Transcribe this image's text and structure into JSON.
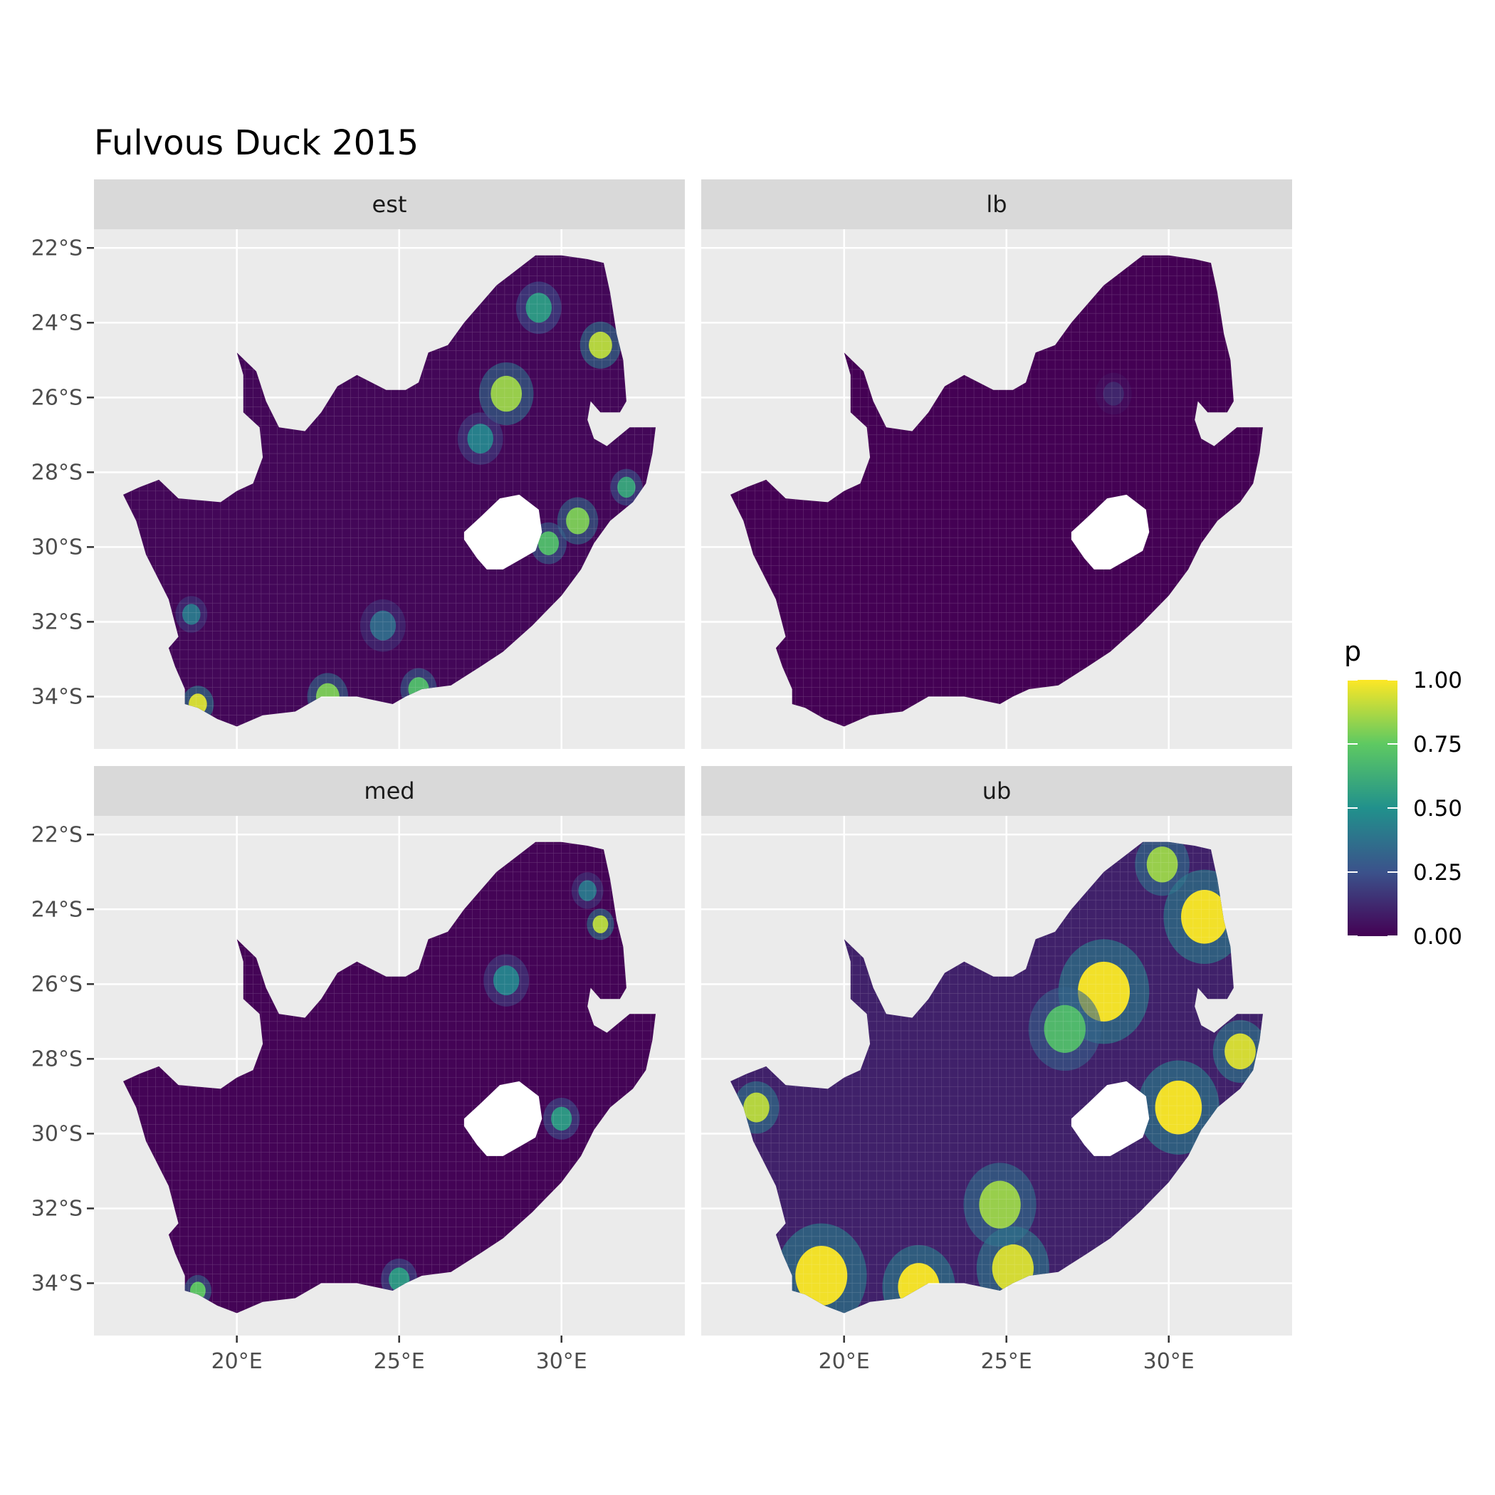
{
  "chart_data": {
    "type": "heatmap",
    "title": "Fulvous Duck 2015",
    "xlabel": "",
    "ylabel": "",
    "xlim": [
      15.6,
      33.8
    ],
    "ylim": [
      -35.4,
      -21.5
    ],
    "x_ticks": [
      {
        "value": 20,
        "label": "20°E"
      },
      {
        "value": 25,
        "label": "25°E"
      },
      {
        "value": 30,
        "label": "30°E"
      }
    ],
    "y_ticks": [
      {
        "value": -22,
        "label": "22°S"
      },
      {
        "value": -24,
        "label": "24°S"
      },
      {
        "value": -26,
        "label": "26°S"
      },
      {
        "value": -28,
        "label": "28°S"
      },
      {
        "value": -30,
        "label": "30°S"
      },
      {
        "value": -32,
        "label": "32°S"
      },
      {
        "value": -34,
        "label": "34°S"
      }
    ],
    "grid": true,
    "legend": {
      "title": "p",
      "position": "right",
      "range": [
        0,
        1
      ],
      "breaks": [
        {
          "value": 1.0,
          "label": "1.00"
        },
        {
          "value": 0.75,
          "label": "0.75"
        },
        {
          "value": 0.5,
          "label": "0.50"
        },
        {
          "value": 0.25,
          "label": "0.25"
        },
        {
          "value": 0.0,
          "label": "0.00"
        }
      ]
    },
    "colors": [
      "#440154",
      "#3b528b",
      "#21918c",
      "#5ec962",
      "#fde725"
    ],
    "facets": [
      {
        "label": "est",
        "background_p": 0.02,
        "hotspots": [
          {
            "lon": 28.3,
            "lat": -25.9,
            "p": 0.85,
            "r": 0.6
          },
          {
            "lon": 31.2,
            "lat": -24.6,
            "p": 0.9,
            "r": 0.45
          },
          {
            "lon": 29.3,
            "lat": -23.6,
            "p": 0.55,
            "r": 0.5
          },
          {
            "lon": 30.5,
            "lat": -29.3,
            "p": 0.8,
            "r": 0.45
          },
          {
            "lon": 29.6,
            "lat": -29.9,
            "p": 0.7,
            "r": 0.4
          },
          {
            "lon": 18.8,
            "lat": -34.2,
            "p": 0.95,
            "r": 0.35
          },
          {
            "lon": 22.8,
            "lat": -34.0,
            "p": 0.8,
            "r": 0.45
          },
          {
            "lon": 25.6,
            "lat": -33.8,
            "p": 0.7,
            "r": 0.4
          },
          {
            "lon": 24.5,
            "lat": -32.1,
            "p": 0.35,
            "r": 0.5
          },
          {
            "lon": 27.5,
            "lat": -27.1,
            "p": 0.45,
            "r": 0.5
          },
          {
            "lon": 18.6,
            "lat": -31.8,
            "p": 0.4,
            "r": 0.35
          },
          {
            "lon": 32.0,
            "lat": -28.4,
            "p": 0.6,
            "r": 0.35
          }
        ]
      },
      {
        "label": "lb",
        "background_p": 0.0,
        "hotspots": [
          {
            "lon": 28.3,
            "lat": -25.9,
            "p": 0.12,
            "r": 0.4
          }
        ]
      },
      {
        "label": "med",
        "background_p": 0.01,
        "hotspots": [
          {
            "lon": 31.2,
            "lat": -24.4,
            "p": 0.9,
            "r": 0.3
          },
          {
            "lon": 28.3,
            "lat": -25.9,
            "p": 0.45,
            "r": 0.5
          },
          {
            "lon": 30.0,
            "lat": -29.6,
            "p": 0.55,
            "r": 0.4
          },
          {
            "lon": 18.8,
            "lat": -34.2,
            "p": 0.75,
            "r": 0.3
          },
          {
            "lon": 25.0,
            "lat": -33.9,
            "p": 0.55,
            "r": 0.4
          },
          {
            "lon": 30.8,
            "lat": -23.5,
            "p": 0.4,
            "r": 0.35
          }
        ]
      },
      {
        "label": "ub",
        "background_p": 0.1,
        "hotspots": [
          {
            "lon": 28.0,
            "lat": -26.2,
            "p": 1.0,
            "r": 1.0
          },
          {
            "lon": 31.1,
            "lat": -24.2,
            "p": 1.0,
            "r": 0.9
          },
          {
            "lon": 30.3,
            "lat": -29.3,
            "p": 1.0,
            "r": 0.9
          },
          {
            "lon": 19.3,
            "lat": -33.8,
            "p": 1.0,
            "r": 1.0
          },
          {
            "lon": 22.3,
            "lat": -34.1,
            "p": 1.0,
            "r": 0.8
          },
          {
            "lon": 25.2,
            "lat": -33.6,
            "p": 0.95,
            "r": 0.8
          },
          {
            "lon": 24.8,
            "lat": -31.9,
            "p": 0.85,
            "r": 0.8
          },
          {
            "lon": 32.2,
            "lat": -27.8,
            "p": 0.95,
            "r": 0.6
          },
          {
            "lon": 17.3,
            "lat": -29.3,
            "p": 0.9,
            "r": 0.5
          },
          {
            "lon": 29.8,
            "lat": -22.8,
            "p": 0.85,
            "r": 0.6
          },
          {
            "lon": 26.8,
            "lat": -27.2,
            "p": 0.7,
            "r": 0.8
          }
        ]
      }
    ]
  }
}
